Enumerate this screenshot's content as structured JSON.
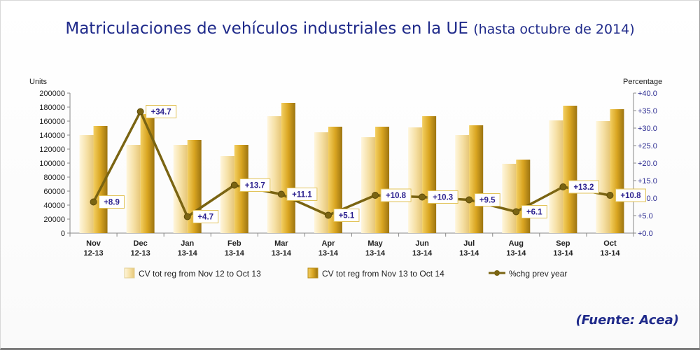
{
  "title": {
    "main": "Matriculaciones de vehículos industriales en la UE",
    "sub": "(hasta octubre de 2014)"
  },
  "source": "(Fuente: Acea)",
  "colors": {
    "series1": "#f5dfa3",
    "series2": "#d9a521",
    "line": "#7a6412",
    "label_text": "#2a1f8e",
    "title": "#1f2a8a"
  },
  "chart_data": {
    "type": "bar",
    "categories": [
      [
        "Nov",
        "12-13"
      ],
      [
        "Dec",
        "12-13"
      ],
      [
        "Jan",
        "13-14"
      ],
      [
        "Feb",
        "13-14"
      ],
      [
        "Mar",
        "13-14"
      ],
      [
        "Apr",
        "13-14"
      ],
      [
        "May",
        "13-14"
      ],
      [
        "Jun",
        "13-14"
      ],
      [
        "Jul",
        "13-14"
      ],
      [
        "Aug",
        "13-14"
      ],
      [
        "Sep",
        "13-14"
      ],
      [
        "Oct",
        "13-14"
      ]
    ],
    "series": [
      {
        "name": "CV tot reg from Nov 12 to Oct 13",
        "type": "bar",
        "values": [
          140000,
          126000,
          126000,
          110000,
          167000,
          144000,
          137000,
          151000,
          140000,
          99000,
          161000,
          160000
        ]
      },
      {
        "name": "CV tot reg from Nov 13 to Oct 14",
        "type": "bar",
        "values": [
          153000,
          170000,
          133000,
          126000,
          186000,
          152000,
          152000,
          167000,
          154000,
          105000,
          182000,
          177000
        ]
      },
      {
        "name": "%chg prev year",
        "type": "line",
        "axis": "right",
        "values": [
          8.9,
          34.7,
          4.7,
          13.7,
          11.1,
          5.1,
          10.8,
          10.3,
          9.5,
          6.1,
          13.2,
          10.8
        ],
        "labels": [
          "+8.9",
          "+34.7",
          "+4.7",
          "+13.7",
          "+11.1",
          "+5.1",
          "+10.8",
          "+10.3",
          "+9.5",
          "+6.1",
          "+13.2",
          "+10.8"
        ]
      }
    ],
    "y_left": {
      "label": "Units",
      "range": [
        0,
        200000
      ],
      "ticks": [
        "0",
        "20000",
        "40000",
        "60000",
        "80000",
        "100000",
        "120000",
        "140000",
        "160000",
        "180000",
        "200000"
      ]
    },
    "y_right": {
      "label": "Percentage",
      "range": [
        0,
        40
      ],
      "ticks": [
        "+0.0",
        "+5.0",
        "+10.0",
        "+15.0",
        "+20.0",
        "+25.0",
        "+30.0",
        "+35.0",
        "+40.0"
      ]
    },
    "grid": false,
    "legend": "bottom"
  }
}
